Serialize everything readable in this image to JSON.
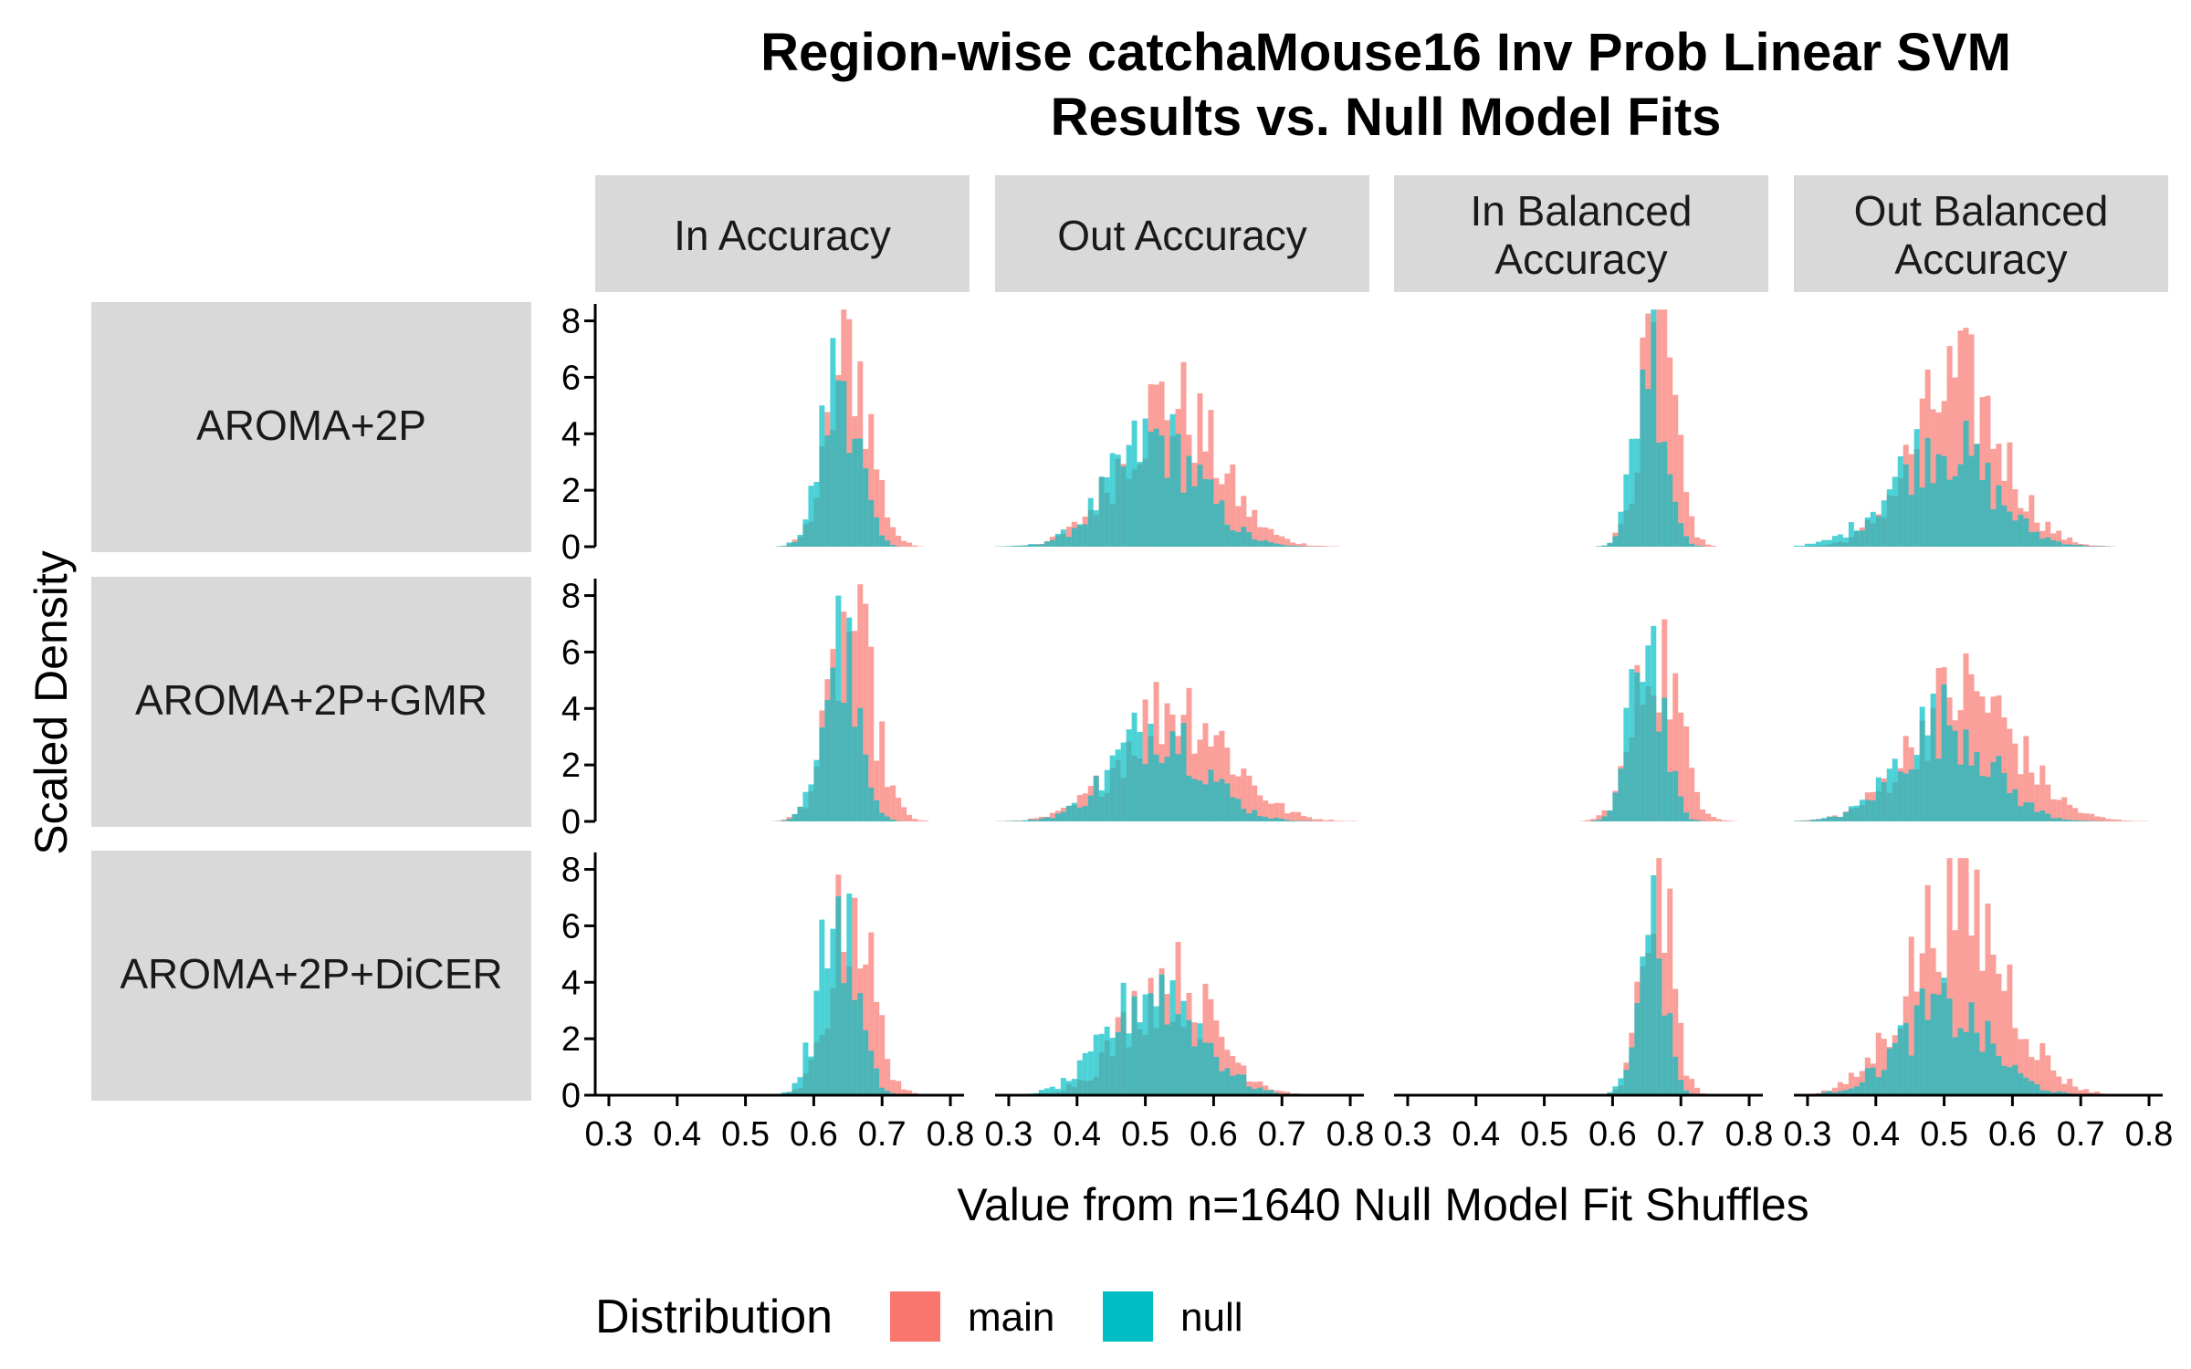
{
  "chart_data": {
    "type": "histogram",
    "title": "Region-wise catchaMouse16 Inv Prob Linear SVM",
    "subtitle": "Results vs. Null Model Fits",
    "xlabel": "Value from n=1640 Null Model Fit Shuffles",
    "ylabel": "Scaled Density",
    "x_ticks": [
      "0.3",
      "0.4",
      "0.5",
      "0.6",
      "0.7",
      "0.8"
    ],
    "y_ticks": [
      "0",
      "2",
      "4",
      "6",
      "8"
    ],
    "xlim": [
      0.28,
      0.82
    ],
    "ylim": [
      0,
      8.6
    ],
    "grid": false,
    "legend": {
      "title": "Distribution",
      "position": "bottom",
      "entries": [
        {
          "name": "main",
          "color": "#F8766D"
        },
        {
          "name": "null",
          "color": "#00BFC4"
        }
      ]
    },
    "columns": [
      "In Accuracy",
      "Out Accuracy",
      "In Balanced Accuracy",
      "Out Balanced Accuracy"
    ],
    "rows": [
      "AROMA+2P",
      "AROMA+2P+GMR",
      "AROMA+2P+DiCER"
    ],
    "panels": [
      [
        {
          "main": {
            "center": 0.653,
            "sd": 0.03,
            "peak": 7.5
          },
          "null": {
            "center": 0.638,
            "sd": 0.026,
            "peak": 6.9
          }
        },
        {
          "main": {
            "center": 0.535,
            "sd": 0.07,
            "peak": 5.5
          },
          "null": {
            "center": 0.515,
            "sd": 0.065,
            "peak": 4.1
          }
        },
        {
          "main": {
            "center": 0.665,
            "sd": 0.025,
            "peak": 8.2
          },
          "null": {
            "center": 0.655,
            "sd": 0.022,
            "peak": 7.8
          }
        },
        {
          "main": {
            "center": 0.52,
            "sd": 0.065,
            "peak": 6.2
          },
          "null": {
            "center": 0.495,
            "sd": 0.07,
            "peak": 4.0
          }
        }
      ],
      [
        {
          "main": {
            "center": 0.655,
            "sd": 0.032,
            "peak": 7.5
          },
          "null": {
            "center": 0.638,
            "sd": 0.025,
            "peak": 6.8
          }
        },
        {
          "main": {
            "center": 0.545,
            "sd": 0.075,
            "peak": 4.5
          },
          "null": {
            "center": 0.52,
            "sd": 0.065,
            "peak": 3.7
          }
        },
        {
          "main": {
            "center": 0.665,
            "sd": 0.032,
            "peak": 6.7
          },
          "null": {
            "center": 0.65,
            "sd": 0.023,
            "peak": 7.4
          }
        },
        {
          "main": {
            "center": 0.53,
            "sd": 0.075,
            "peak": 5.0
          },
          "null": {
            "center": 0.5,
            "sd": 0.065,
            "peak": 3.9
          }
        }
      ],
      [
        {
          "main": {
            "center": 0.655,
            "sd": 0.03,
            "peak": 7.5
          },
          "null": {
            "center": 0.635,
            "sd": 0.027,
            "peak": 7.0
          }
        },
        {
          "main": {
            "center": 0.535,
            "sd": 0.065,
            "peak": 4.4
          },
          "null": {
            "center": 0.515,
            "sd": 0.065,
            "peak": 4.1
          }
        },
        {
          "main": {
            "center": 0.665,
            "sd": 0.022,
            "peak": 8.2
          },
          "null": {
            "center": 0.655,
            "sd": 0.02,
            "peak": 7.5
          }
        },
        {
          "main": {
            "center": 0.52,
            "sd": 0.07,
            "peak": 7.5
          },
          "null": {
            "center": 0.5,
            "sd": 0.065,
            "peak": 3.3
          }
        }
      ]
    ]
  }
}
